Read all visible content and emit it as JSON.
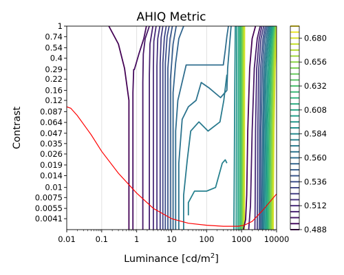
{
  "chart_data": {
    "type": "contour",
    "title": "AHIQ Metric",
    "xlabel_main": "Luminance [cd/m",
    "xlabel_sup": "2",
    "xlabel_end": "]",
    "ylabel": "Contrast",
    "x_scale": "log",
    "y_scale": "log",
    "xlim": [
      0.01,
      10000
    ],
    "ylim": [
      0.003,
      1
    ],
    "x_ticks": [
      {
        "value": 0.01,
        "label": "0.01"
      },
      {
        "value": 0.1,
        "label": "0.1"
      },
      {
        "value": 1,
        "label": "1"
      },
      {
        "value": 10,
        "label": "10"
      },
      {
        "value": 100,
        "label": "100"
      },
      {
        "value": 1000,
        "label": "1000"
      },
      {
        "value": 10000,
        "label": "10000"
      }
    ],
    "y_ticks": [
      {
        "value": 1,
        "label": "1"
      },
      {
        "value": 0.74,
        "label": "0.74"
      },
      {
        "value": 0.54,
        "label": "0.54"
      },
      {
        "value": 0.4,
        "label": "0.4"
      },
      {
        "value": 0.29,
        "label": "0.29"
      },
      {
        "value": 0.22,
        "label": "0.22"
      },
      {
        "value": 0.16,
        "label": "0.16"
      },
      {
        "value": 0.12,
        "label": "0.12"
      },
      {
        "value": 0.087,
        "label": "0.087"
      },
      {
        "value": 0.064,
        "label": "0.064"
      },
      {
        "value": 0.047,
        "label": "0.047"
      },
      {
        "value": 0.035,
        "label": "0.035"
      },
      {
        "value": 0.026,
        "label": "0.026"
      },
      {
        "value": 0.019,
        "label": "0.019"
      },
      {
        "value": 0.014,
        "label": "0.014"
      },
      {
        "value": 0.01,
        "label": "0.01"
      },
      {
        "value": 0.0075,
        "label": "0.0075"
      },
      {
        "value": 0.0055,
        "label": "0.0055"
      },
      {
        "value": 0.0041,
        "label": "0.0041"
      }
    ],
    "grid": "vertical",
    "colorbar": {
      "colormap": "viridis",
      "range": [
        0.488,
        0.692
      ],
      "levels_step": 0.006,
      "tick_labels": [
        "0.680",
        "0.656",
        "0.632",
        "0.608",
        "0.584",
        "0.560",
        "0.536",
        "0.512",
        "0.488"
      ]
    },
    "reference_curve": {
      "color": "#ff0000",
      "x": [
        0.01,
        0.013,
        0.02,
        0.05,
        0.1,
        0.3,
        1,
        3,
        10,
        30,
        100,
        300,
        800,
        1200,
        2000,
        4000,
        10000
      ],
      "y": [
        0.1,
        0.096,
        0.078,
        0.045,
        0.028,
        0.015,
        0.0085,
        0.0055,
        0.0041,
        0.0036,
        0.0034,
        0.0033,
        0.0033,
        0.0034,
        0.0038,
        0.0052,
        0.0083
      ]
    },
    "contour_lines": [
      {
        "level": 0.488,
        "x": [
          0.6,
          0.6,
          0.45,
          0.3,
          0.16
        ],
        "y": [
          0.003,
          0.12,
          0.3,
          0.6,
          1
        ]
      },
      {
        "level": 0.494,
        "x": [
          0.78,
          0.78,
          0.82,
          0.86,
          1.15,
          1.6,
          1.9
        ],
        "y": [
          0.003,
          0.15,
          0.29,
          0.29,
          0.45,
          0.7,
          1
        ]
      },
      {
        "level": 0.5,
        "x": [
          1.5,
          1.5,
          1.55,
          1.75,
          2.3
        ],
        "y": [
          0.003,
          0.2,
          0.45,
          0.7,
          1
        ]
      },
      {
        "level": 0.506,
        "x": [
          2.3,
          2.3,
          2.4,
          2.9
        ],
        "y": [
          0.003,
          0.25,
          0.6,
          1
        ]
      },
      {
        "level": 0.512,
        "x": [
          3.0,
          3.0,
          3.1,
          3.6
        ],
        "y": [
          0.003,
          0.3,
          0.65,
          1
        ]
      },
      {
        "level": 0.518,
        "x": [
          3.8,
          3.8,
          4.0,
          4.6
        ],
        "y": [
          0.003,
          0.32,
          0.7,
          1
        ]
      },
      {
        "level": 0.524,
        "x": [
          4.7,
          4.7,
          5.0,
          5.6
        ],
        "y": [
          0.003,
          0.35,
          0.72,
          1
        ]
      },
      {
        "level": 0.53,
        "x": [
          5.6,
          5.6,
          6.2,
          7.0
        ],
        "y": [
          0.003,
          0.35,
          0.72,
          1
        ]
      },
      {
        "level": 0.536,
        "x": [
          6.6,
          6.6,
          7.4,
          8.5
        ],
        "y": [
          0.003,
          0.35,
          0.75,
          1
        ]
      },
      {
        "level": 0.542,
        "x": [
          7.8,
          7.8,
          9.0,
          10.5
        ],
        "y": [
          0.003,
          0.3,
          0.7,
          1
        ]
      },
      {
        "level": 0.548,
        "x": [
          9.2,
          9.2,
          11,
          13.5
        ],
        "y": [
          0.003,
          0.22,
          0.6,
          1
        ]
      },
      {
        "level": 0.554,
        "x": [
          11,
          11,
          13,
          16,
          22
        ],
        "y": [
          0.003,
          0.15,
          0.35,
          0.7,
          1
        ]
      },
      {
        "level": 0.56,
        "x": [
          13,
          13,
          15,
          26,
          90,
          300,
          340,
          380,
          420
        ],
        "y": [
          0.003,
          0.05,
          0.12,
          0.33,
          0.33,
          0.33,
          0.5,
          0.75,
          1
        ]
      },
      {
        "level": 0.566,
        "x": [
          16,
          16,
          20,
          30,
          50,
          70,
          120,
          250,
          380,
          400,
          500
        ],
        "y": [
          0.003,
          0.02,
          0.07,
          0.1,
          0.12,
          0.2,
          0.17,
          0.13,
          0.16,
          0.3,
          1
        ]
      },
      {
        "level": 0.572,
        "x": [
          22,
          22,
          28,
          35,
          60,
          110,
          240,
          310,
          380
        ],
        "y": [
          0.003,
          0.008,
          0.022,
          0.05,
          0.065,
          0.05,
          0.065,
          0.12,
          0.25
        ]
      },
      {
        "level": 0.578,
        "x": [
          30,
          30,
          45,
          100,
          180,
          280,
          340,
          380
        ],
        "y": [
          0.0045,
          0.0065,
          0.009,
          0.009,
          0.01,
          0.02,
          0.022,
          0.02
        ]
      },
      {
        "level": 0.584,
        "x": [
          600,
          620,
          640,
          660
        ],
        "y": [
          0.003,
          0.02,
          0.2,
          1
        ]
      },
      {
        "level": 0.596,
        "x": [
          700,
          710,
          720,
          730
        ],
        "y": [
          0.003,
          0.03,
          0.3,
          1
        ]
      },
      {
        "level": 0.608,
        "x": [
          790,
          800,
          810,
          820
        ],
        "y": [
          0.003,
          0.03,
          0.3,
          1
        ]
      },
      {
        "level": 0.62,
        "x": [
          880,
          885,
          890,
          895
        ],
        "y": [
          0.003,
          0.03,
          0.3,
          1
        ]
      },
      {
        "level": 0.632,
        "x": [
          950,
          955,
          960,
          965
        ],
        "y": [
          0.003,
          0.03,
          0.3,
          1
        ]
      },
      {
        "level": 0.644,
        "x": [
          1020,
          1025,
          1030,
          1035
        ],
        "y": [
          0.003,
          0.03,
          0.3,
          1
        ]
      },
      {
        "level": 0.656,
        "x": [
          1080,
          1085,
          1090,
          1095
        ],
        "y": [
          0.003,
          0.03,
          0.3,
          1
        ]
      },
      {
        "level": 0.668,
        "x": [
          1140,
          1145,
          1150,
          1155
        ],
        "y": [
          0.003,
          0.03,
          0.3,
          1
        ]
      },
      {
        "level": 0.68,
        "x": [
          1200,
          1205,
          1210,
          1215
        ],
        "y": [
          0.003,
          0.03,
          0.3,
          1
        ]
      },
      {
        "level": 0.488,
        "x": [
          1120,
          1300,
          1400,
          1500,
          1700,
          2000,
          2500
        ],
        "y": [
          0.003,
          0.004,
          0.008,
          0.05,
          0.3,
          0.7,
          1
        ]
      },
      {
        "level": 0.5,
        "x": [
          1600,
          1800,
          2000,
          2300,
          2800,
          3400
        ],
        "y": [
          0.003,
          0.006,
          0.05,
          0.3,
          0.7,
          1
        ]
      },
      {
        "level": 0.512,
        "x": [
          2400,
          2450,
          2500,
          2700,
          3200,
          3800
        ],
        "y": [
          0.003,
          0.007,
          0.05,
          0.3,
          0.7,
          1
        ]
      },
      {
        "level": 0.524,
        "x": [
          2800,
          2850,
          2900,
          3100,
          3600,
          4300
        ],
        "y": [
          0.003,
          0.007,
          0.05,
          0.3,
          0.7,
          1
        ]
      },
      {
        "level": 0.536,
        "x": [
          3200,
          3250,
          3300,
          3500,
          4100,
          4800
        ],
        "y": [
          0.003,
          0.007,
          0.05,
          0.3,
          0.7,
          1
        ]
      },
      {
        "level": 0.548,
        "x": [
          3500,
          3550,
          3600,
          3900,
          4500,
          5300
        ],
        "y": [
          0.003,
          0.007,
          0.05,
          0.3,
          0.7,
          1
        ]
      },
      {
        "level": 0.56,
        "x": [
          3800,
          3850,
          4000,
          4300,
          5000,
          5800
        ],
        "y": [
          0.003,
          0.007,
          0.05,
          0.3,
          0.7,
          1
        ]
      },
      {
        "level": 0.572,
        "x": [
          4100,
          4150,
          4300,
          4700,
          5500,
          6300
        ],
        "y": [
          0.003,
          0.007,
          0.05,
          0.3,
          0.7,
          1
        ]
      },
      {
        "level": 0.584,
        "x": [
          4400,
          4500,
          4700,
          5100,
          6000,
          6800
        ],
        "y": [
          0.003,
          0.007,
          0.05,
          0.3,
          0.7,
          1
        ]
      },
      {
        "level": 0.596,
        "x": [
          4800,
          4900,
          5100,
          5600,
          6500,
          7300
        ],
        "y": [
          0.003,
          0.007,
          0.05,
          0.3,
          0.7,
          1
        ]
      },
      {
        "level": 0.608,
        "x": [
          5200,
          5300,
          5500,
          6100,
          7000,
          7800
        ],
        "y": [
          0.003,
          0.007,
          0.05,
          0.3,
          0.7,
          1
        ]
      },
      {
        "level": 0.62,
        "x": [
          5600,
          5700,
          6000,
          6600,
          7500,
          8300
        ],
        "y": [
          0.003,
          0.007,
          0.05,
          0.3,
          0.7,
          1
        ]
      },
      {
        "level": 0.632,
        "x": [
          6000,
          6100,
          6400,
          7100,
          8000,
          8800
        ],
        "y": [
          0.003,
          0.007,
          0.05,
          0.3,
          0.7,
          1
        ]
      },
      {
        "level": 0.644,
        "x": [
          6500,
          6600,
          6900,
          7600,
          8500,
          9200
        ],
        "y": [
          0.003,
          0.007,
          0.05,
          0.3,
          0.7,
          1
        ]
      },
      {
        "level": 0.656,
        "x": [
          7000,
          7100,
          7400,
          8100,
          9000,
          9600
        ],
        "y": [
          0.003,
          0.007,
          0.05,
          0.3,
          0.7,
          1
        ]
      },
      {
        "level": 0.668,
        "x": [
          7500,
          7600,
          7900,
          8600,
          9400,
          9900
        ],
        "y": [
          0.003,
          0.007,
          0.05,
          0.3,
          0.7,
          1
        ]
      },
      {
        "level": 0.68,
        "x": [
          8000,
          8100,
          8400,
          9100,
          9800,
          10000
        ],
        "y": [
          0.003,
          0.007,
          0.05,
          0.3,
          0.7,
          1
        ]
      }
    ]
  }
}
